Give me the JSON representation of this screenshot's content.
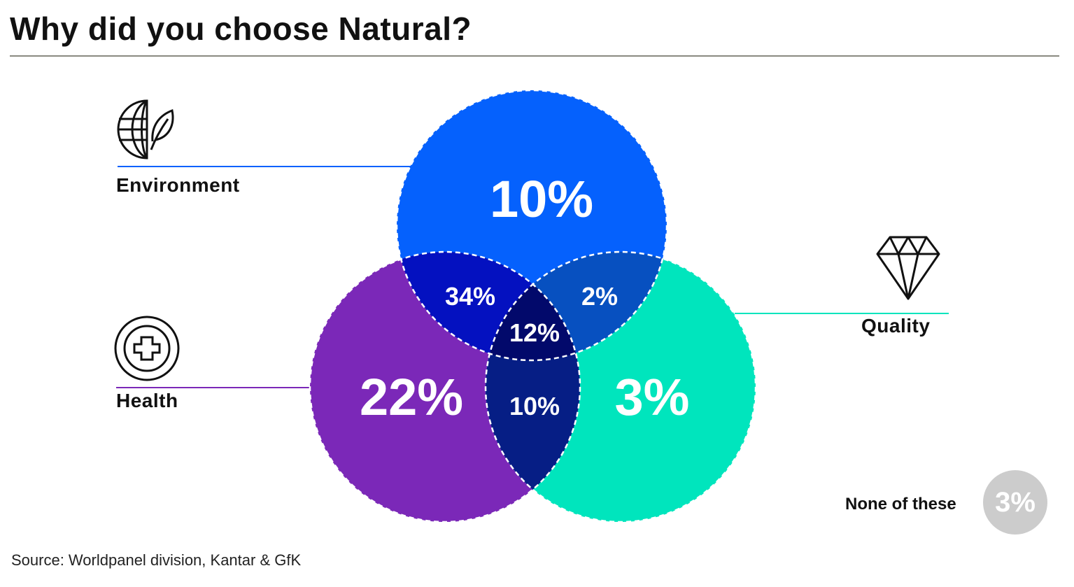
{
  "title": "Why did you choose Natural?",
  "source": "Source: Worldpanel division, Kantar & GfK",
  "sets": {
    "environment": {
      "label": "Environment",
      "value": "10%",
      "color": "#0561fd",
      "icon": "globe-leaf-icon"
    },
    "health": {
      "label": "Health",
      "value": "22%",
      "color": "#7b28b8",
      "icon": "medical-cross-icon"
    },
    "quality": {
      "label": "Quality",
      "value": "3%",
      "color": "#00e5bd",
      "icon": "diamond-icon"
    }
  },
  "overlaps": {
    "environment_health": {
      "value": "34%",
      "color": "#0411c0"
    },
    "environment_quality": {
      "value": "2%",
      "color": "#0750c0"
    },
    "health_quality": {
      "value": "10%",
      "color": "#061e85"
    },
    "all_three": {
      "value": "12%",
      "color": "#02096b"
    }
  },
  "none": {
    "label": "None of these",
    "value": "3%",
    "color": "#cccccc"
  }
}
